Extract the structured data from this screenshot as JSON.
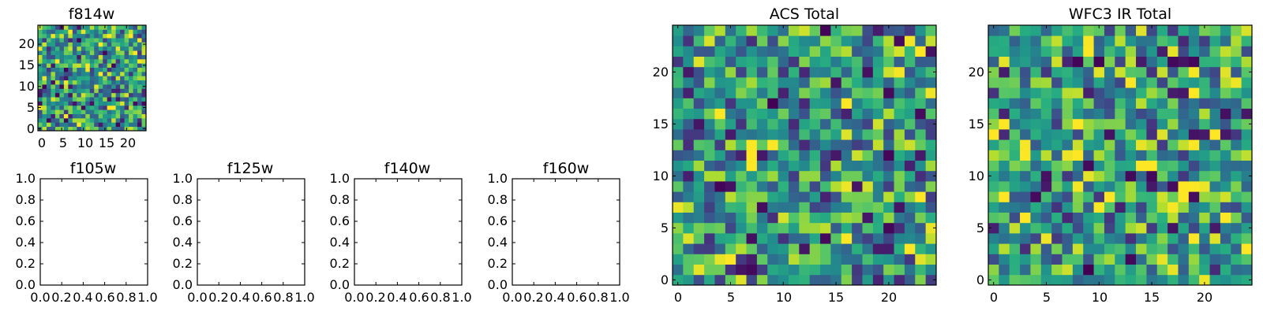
{
  "chart_data": [
    {
      "type": "heatmap",
      "title": "f814w",
      "grid_size": 25,
      "colormap": "viridis",
      "xticks": [
        "0",
        "5",
        "10",
        "15",
        "20"
      ],
      "yticks": [
        "0",
        "5",
        "10",
        "15",
        "20"
      ],
      "xlim": [
        -0.5,
        24.5
      ],
      "ylim": [
        -0.5,
        24.5
      ],
      "seed": 814
    },
    {
      "type": "empty",
      "title": "f105w",
      "xticks": [
        "0.0",
        "0.2",
        "0.4",
        "0.6",
        "0.8",
        "1.0"
      ],
      "yticks": [
        "0.0",
        "0.2",
        "0.4",
        "0.6",
        "0.8",
        "1.0"
      ],
      "xlim": [
        0,
        1
      ],
      "ylim": [
        0,
        1
      ]
    },
    {
      "type": "empty",
      "title": "f125w",
      "xticks": [
        "0.0",
        "0.2",
        "0.4",
        "0.6",
        "0.8",
        "1.0"
      ],
      "yticks": [
        "0.0",
        "0.2",
        "0.4",
        "0.6",
        "0.8",
        "1.0"
      ],
      "xlim": [
        0,
        1
      ],
      "ylim": [
        0,
        1
      ]
    },
    {
      "type": "empty",
      "title": "f140w",
      "xticks": [
        "0.0",
        "0.2",
        "0.4",
        "0.6",
        "0.8",
        "1.0"
      ],
      "yticks": [
        "0.0",
        "0.2",
        "0.4",
        "0.6",
        "0.8",
        "1.0"
      ],
      "xlim": [
        0,
        1
      ],
      "ylim": [
        0,
        1
      ]
    },
    {
      "type": "empty",
      "title": "f160w",
      "xticks": [
        "0.0",
        "0.2",
        "0.4",
        "0.6",
        "0.8",
        "1.0"
      ],
      "yticks": [
        "0.0",
        "0.2",
        "0.4",
        "0.6",
        "0.8",
        "1.0"
      ],
      "xlim": [
        0,
        1
      ],
      "ylim": [
        0,
        1
      ]
    },
    {
      "type": "heatmap",
      "title": "ACS Total",
      "grid_size": 25,
      "colormap": "viridis",
      "xticks": [
        "0",
        "5",
        "10",
        "15",
        "20"
      ],
      "yticks": [
        "0",
        "5",
        "10",
        "15",
        "20"
      ],
      "xlim": [
        -0.5,
        24.5
      ],
      "ylim": [
        -0.5,
        24.5
      ],
      "seed": 1234
    },
    {
      "type": "heatmap",
      "title": "WFC3 IR Total",
      "grid_size": 25,
      "colormap": "viridis",
      "xticks": [
        "0",
        "5",
        "10",
        "15",
        "20"
      ],
      "yticks": [
        "0",
        "5",
        "10",
        "15",
        "20"
      ],
      "xlim": [
        -0.5,
        24.5
      ],
      "ylim": [
        -0.5,
        24.5
      ],
      "seed": 4321
    }
  ]
}
